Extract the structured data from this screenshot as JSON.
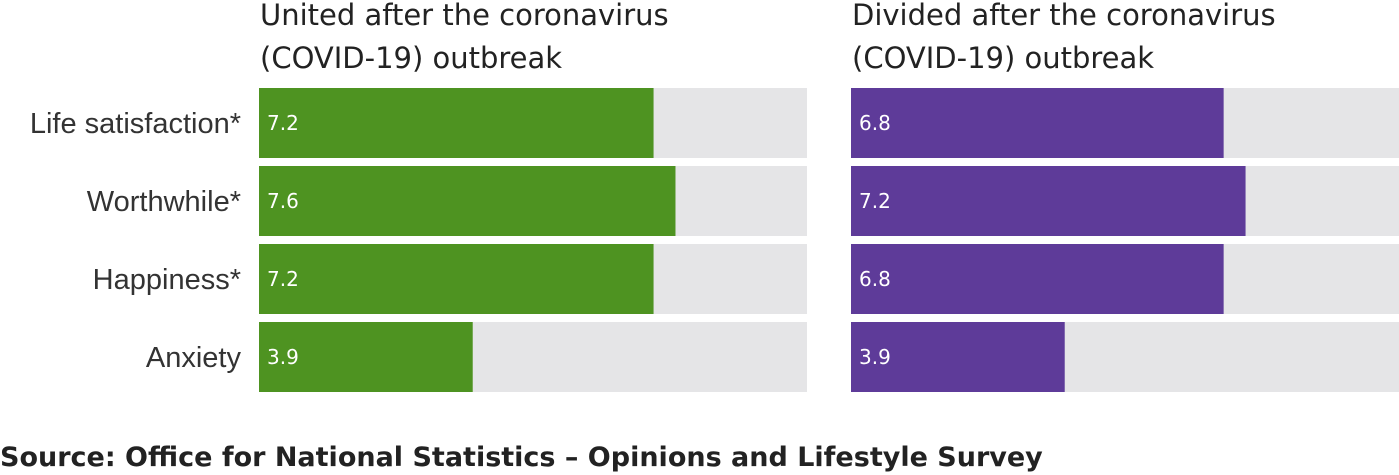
{
  "chart_data": {
    "type": "bar",
    "orientation": "horizontal",
    "categories": [
      "Life satisfaction*",
      "Worthwhile*",
      "Happiness*",
      "Anxiety"
    ],
    "xlim": [
      0,
      10
    ],
    "grid": false,
    "legend": "none",
    "series": [
      {
        "name": "United after the coronavirus (COVID-19) outbreak",
        "title_lines": [
          "United after the coronavirus",
          "(COVID-19) outbreak"
        ],
        "color": "#4e9321",
        "values": [
          7.2,
          7.6,
          7.2,
          3.9
        ],
        "labels": [
          "7.2",
          "7.6",
          "7.2",
          "3.9"
        ]
      },
      {
        "name": "Divided after the coronavirus (COVID-19) outbreak",
        "title_lines": [
          "Divided after the coronavirus",
          "(COVID-19) outbreak"
        ],
        "color": "#5e3b99",
        "values": [
          6.8,
          7.2,
          6.8,
          3.9
        ],
        "labels": [
          "6.8",
          "7.2",
          "6.8",
          "3.9"
        ]
      }
    ],
    "track_color": "#e5e5e7"
  },
  "source": "Source: Office for National Statistics – Opinions and Lifestyle Survey"
}
